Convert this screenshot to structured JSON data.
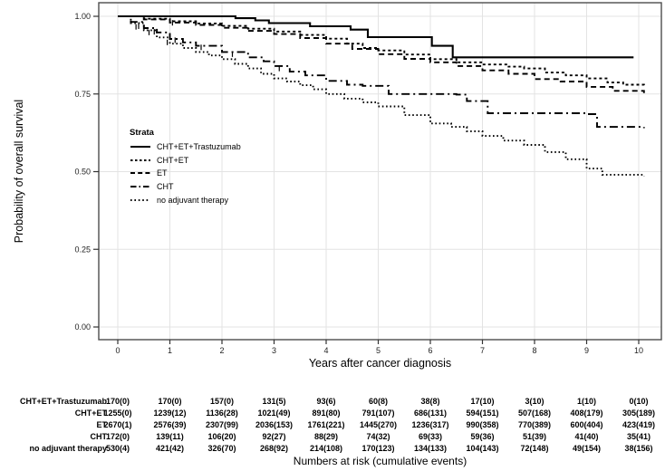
{
  "legend": {
    "title": "Strata"
  },
  "chart_data": {
    "type": "line",
    "subtype": "kaplan-meier-survival-curves",
    "title": "",
    "xlabel": "Years after cancer diagnosis",
    "ylabel": "Probability of overall survival",
    "xlim": [
      0,
      10
    ],
    "ylim": [
      0.0,
      1.0
    ],
    "grid": "major-only",
    "legend_position": "inside-upper-left",
    "grid_color": "#e3e3e3",
    "border_color": "#4d4d4d",
    "tick_color": "#333333",
    "line_color": "#000000",
    "xticks": [
      {
        "value": 0,
        "label": "0"
      },
      {
        "value": 1,
        "label": "1"
      },
      {
        "value": 2,
        "label": "2"
      },
      {
        "value": 3,
        "label": "3"
      },
      {
        "value": 4,
        "label": "4"
      },
      {
        "value": 5,
        "label": "5"
      },
      {
        "value": 6,
        "label": "6"
      },
      {
        "value": 7,
        "label": "7"
      },
      {
        "value": 8,
        "label": "8"
      },
      {
        "value": 9,
        "label": "9"
      },
      {
        "value": 10,
        "label": "10"
      }
    ],
    "yticks": [
      {
        "value": 1.0,
        "label": "1.00"
      },
      {
        "value": 0.75,
        "label": "0.75"
      },
      {
        "value": 0.5,
        "label": "0.50"
      },
      {
        "value": 0.25,
        "label": "0.25"
      },
      {
        "value": 0.0,
        "label": "0.00"
      }
    ],
    "series": [
      {
        "id": "cht-et-trastuzumab",
        "name": "CHT+ET+Trastuzumab",
        "linetype": "solid",
        "dash": "",
        "legend_dash": "",
        "width": 2.1,
        "points": [
          [
            0,
            1.0
          ],
          [
            2.26,
            0.994
          ],
          [
            2.64,
            0.987
          ],
          [
            2.9,
            0.978
          ],
          [
            3.69,
            0.968
          ],
          [
            4.47,
            0.957
          ],
          [
            4.8,
            0.933
          ],
          [
            6.03,
            0.905
          ],
          [
            6.43,
            0.868
          ],
          [
            9.9,
            0.868
          ]
        ],
        "censor_marks": []
      },
      {
        "id": "cht-et",
        "name": "CHT+ET",
        "linetype": "dashed-fine",
        "dash": "3 3",
        "legend_dash": "2.5 2.5",
        "width": 1.9,
        "points": [
          [
            0,
            1.0
          ],
          [
            0.5,
            0.992
          ],
          [
            1,
            0.984
          ],
          [
            1.5,
            0.977
          ],
          [
            2,
            0.969
          ],
          [
            2.5,
            0.96
          ],
          [
            3,
            0.951
          ],
          [
            3.5,
            0.94
          ],
          [
            4,
            0.928
          ],
          [
            4.4,
            0.912
          ],
          [
            4.7,
            0.898
          ],
          [
            5,
            0.89
          ],
          [
            5.5,
            0.877
          ],
          [
            6,
            0.862
          ],
          [
            6.5,
            0.852
          ],
          [
            7,
            0.845
          ],
          [
            7.5,
            0.838
          ],
          [
            7.8,
            0.832
          ],
          [
            8.2,
            0.819
          ],
          [
            8.6,
            0.81
          ],
          [
            9,
            0.8
          ],
          [
            9.4,
            0.787
          ],
          [
            9.7,
            0.78
          ],
          [
            10.1,
            0.778
          ]
        ],
        "censor_marks": []
      },
      {
        "id": "et",
        "name": "ET",
        "linetype": "dashed-medium",
        "dash": "6 4",
        "legend_dash": "5 3.2",
        "width": 1.9,
        "points": [
          [
            0,
            1.0
          ],
          [
            0.5,
            0.99
          ],
          [
            1,
            0.98
          ],
          [
            1.5,
            0.972
          ],
          [
            2,
            0.963
          ],
          [
            2.5,
            0.953
          ],
          [
            3,
            0.943
          ],
          [
            3.5,
            0.93
          ],
          [
            4,
            0.912
          ],
          [
            4.5,
            0.895
          ],
          [
            5,
            0.878
          ],
          [
            5.5,
            0.863
          ],
          [
            6,
            0.852
          ],
          [
            6.5,
            0.84
          ],
          [
            7,
            0.826
          ],
          [
            7.5,
            0.815
          ],
          [
            8,
            0.798
          ],
          [
            8.5,
            0.79
          ],
          [
            9,
            0.773
          ],
          [
            9.5,
            0.76
          ],
          [
            10.1,
            0.753
          ]
        ],
        "censor_marks": [
          [
            1.05,
            0.979
          ]
        ]
      },
      {
        "id": "cht",
        "name": "CHT",
        "linetype": "dash-dot",
        "dash": "9 4 2 4",
        "legend_dash": "6.5 3 1.5 3",
        "width": 1.9,
        "points": [
          [
            0,
            1.0
          ],
          [
            0.25,
            0.982
          ],
          [
            0.5,
            0.962
          ],
          [
            0.75,
            0.948
          ],
          [
            1,
            0.927
          ],
          [
            1.25,
            0.916
          ],
          [
            1.5,
            0.905
          ],
          [
            2,
            0.885
          ],
          [
            2.5,
            0.868
          ],
          [
            2.8,
            0.855
          ],
          [
            3,
            0.84
          ],
          [
            3.3,
            0.822
          ],
          [
            3.6,
            0.81
          ],
          [
            4,
            0.792
          ],
          [
            4.4,
            0.78
          ],
          [
            4.7,
            0.776
          ],
          [
            5.2,
            0.75
          ],
          [
            6.5,
            0.748
          ],
          [
            6.7,
            0.727
          ],
          [
            7.1,
            0.688
          ],
          [
            9.0,
            0.685
          ],
          [
            9.2,
            0.644
          ],
          [
            10.1,
            0.64
          ]
        ],
        "censor_marks": [
          [
            0.4,
            0.968
          ],
          [
            0.7,
            0.95
          ],
          [
            1.1,
            0.923
          ],
          [
            1.6,
            0.9
          ],
          [
            2.2,
            0.878
          ],
          [
            3.1,
            0.832
          ]
        ]
      },
      {
        "id": "no-adjuvant-therapy",
        "name": "no adjuvant therapy",
        "linetype": "dotted",
        "dash": "1.6 2.7",
        "legend_dash": "1.6 2.8",
        "width": 1.9,
        "points": [
          [
            0,
            1.0
          ],
          [
            0.25,
            0.978
          ],
          [
            0.5,
            0.955
          ],
          [
            0.75,
            0.932
          ],
          [
            1,
            0.912
          ],
          [
            1.25,
            0.898
          ],
          [
            1.5,
            0.885
          ],
          [
            1.75,
            0.874
          ],
          [
            2,
            0.862
          ],
          [
            2.25,
            0.847
          ],
          [
            2.5,
            0.832
          ],
          [
            2.75,
            0.815
          ],
          [
            3,
            0.8
          ],
          [
            3.25,
            0.79
          ],
          [
            3.5,
            0.778
          ],
          [
            3.75,
            0.765
          ],
          [
            4,
            0.75
          ],
          [
            4.35,
            0.735
          ],
          [
            4.7,
            0.723
          ],
          [
            5,
            0.71
          ],
          [
            5.5,
            0.682
          ],
          [
            6,
            0.655
          ],
          [
            6.4,
            0.644
          ],
          [
            6.7,
            0.63
          ],
          [
            7,
            0.615
          ],
          [
            7.4,
            0.6
          ],
          [
            7.8,
            0.586
          ],
          [
            8.2,
            0.563
          ],
          [
            8.6,
            0.54
          ],
          [
            9,
            0.51
          ],
          [
            9.3,
            0.49
          ],
          [
            10.1,
            0.486
          ]
        ],
        "censor_marks": [
          [
            0.35,
            0.966
          ],
          [
            0.6,
            0.948
          ],
          [
            0.95,
            0.916
          ]
        ]
      }
    ]
  },
  "risk_table": {
    "caption": "Numbers at risk (cumulative events)",
    "years": [
      0,
      1,
      2,
      3,
      4,
      5,
      6,
      7,
      8,
      9,
      10
    ],
    "rows": [
      {
        "id": "cht-et-trastuzumab",
        "label": "CHT+ET+Trastuzumab",
        "values": [
          "170(0)",
          "170(0)",
          "157(0)",
          "131(5)",
          "93(6)",
          "60(8)",
          "38(8)",
          "17(10)",
          "3(10)",
          "1(10)",
          "0(10)"
        ]
      },
      {
        "id": "cht-et",
        "label": "CHT+ET",
        "values": [
          "1255(0)",
          "1239(12)",
          "1136(28)",
          "1021(49)",
          "891(80)",
          "791(107)",
          "686(131)",
          "594(151)",
          "507(168)",
          "408(179)",
          "305(189)"
        ]
      },
      {
        "id": "et",
        "label": "ET",
        "values": [
          "2670(1)",
          "2576(39)",
          "2307(99)",
          "2036(153)",
          "1761(221)",
          "1445(270)",
          "1236(317)",
          "990(358)",
          "770(389)",
          "600(404)",
          "423(419)"
        ]
      },
      {
        "id": "cht",
        "label": "CHT",
        "values": [
          "172(0)",
          "139(11)",
          "106(20)",
          "92(27)",
          "88(29)",
          "74(32)",
          "69(33)",
          "59(36)",
          "51(39)",
          "41(40)",
          "35(41)"
        ]
      },
      {
        "id": "no-adjuvant-therapy",
        "label": "no adjuvant therapy",
        "values": [
          "530(4)",
          "421(42)",
          "326(70)",
          "268(92)",
          "214(108)",
          "170(123)",
          "134(133)",
          "104(143)",
          "72(148)",
          "49(154)",
          "38(156)"
        ]
      }
    ]
  }
}
